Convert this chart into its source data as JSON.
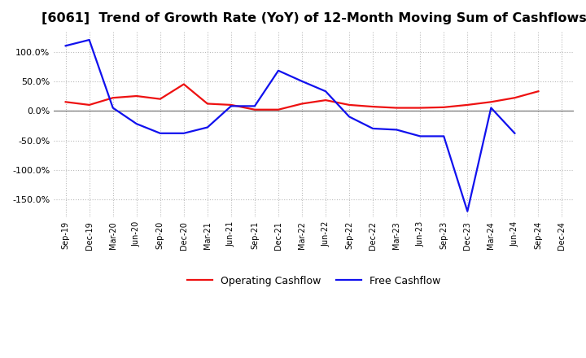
{
  "title": "[6061]  Trend of Growth Rate (YoY) of 12-Month Moving Sum of Cashflows",
  "title_fontsize": 11.5,
  "ylim": [
    -180,
    135
  ],
  "yticks": [
    -150,
    -100,
    -50,
    0,
    50,
    100
  ],
  "ytick_labels": [
    "-150.0%",
    "-100.0%",
    "-50.0%",
    "0.0%",
    "50.0%",
    "100.0%"
  ],
  "x_labels": [
    "Sep-19",
    "Dec-19",
    "Mar-20",
    "Jun-20",
    "Sep-20",
    "Dec-20",
    "Mar-21",
    "Jun-21",
    "Sep-21",
    "Dec-21",
    "Mar-22",
    "Jun-22",
    "Sep-22",
    "Dec-22",
    "Mar-23",
    "Jun-23",
    "Sep-23",
    "Dec-23",
    "Mar-24",
    "Jun-24",
    "Sep-24",
    "Dec-24"
  ],
  "operating_cashflow": [
    15,
    10,
    22,
    25,
    20,
    45,
    12,
    10,
    2,
    2,
    12,
    18,
    10,
    7,
    5,
    5,
    6,
    10,
    15,
    22,
    33,
    null
  ],
  "free_cashflow": [
    110,
    120,
    5,
    -22,
    -38,
    -38,
    -28,
    8,
    8,
    68,
    50,
    33,
    -10,
    -30,
    -32,
    -43,
    -43,
    -170,
    5,
    -38,
    null,
    null
  ],
  "operating_color": "#EE1111",
  "free_color": "#1111EE",
  "bg_color": "#FFFFFF",
  "grid_color": "#BBBBBB",
  "line_width": 1.6,
  "legend_labels": [
    "Operating Cashflow",
    "Free Cashflow"
  ]
}
